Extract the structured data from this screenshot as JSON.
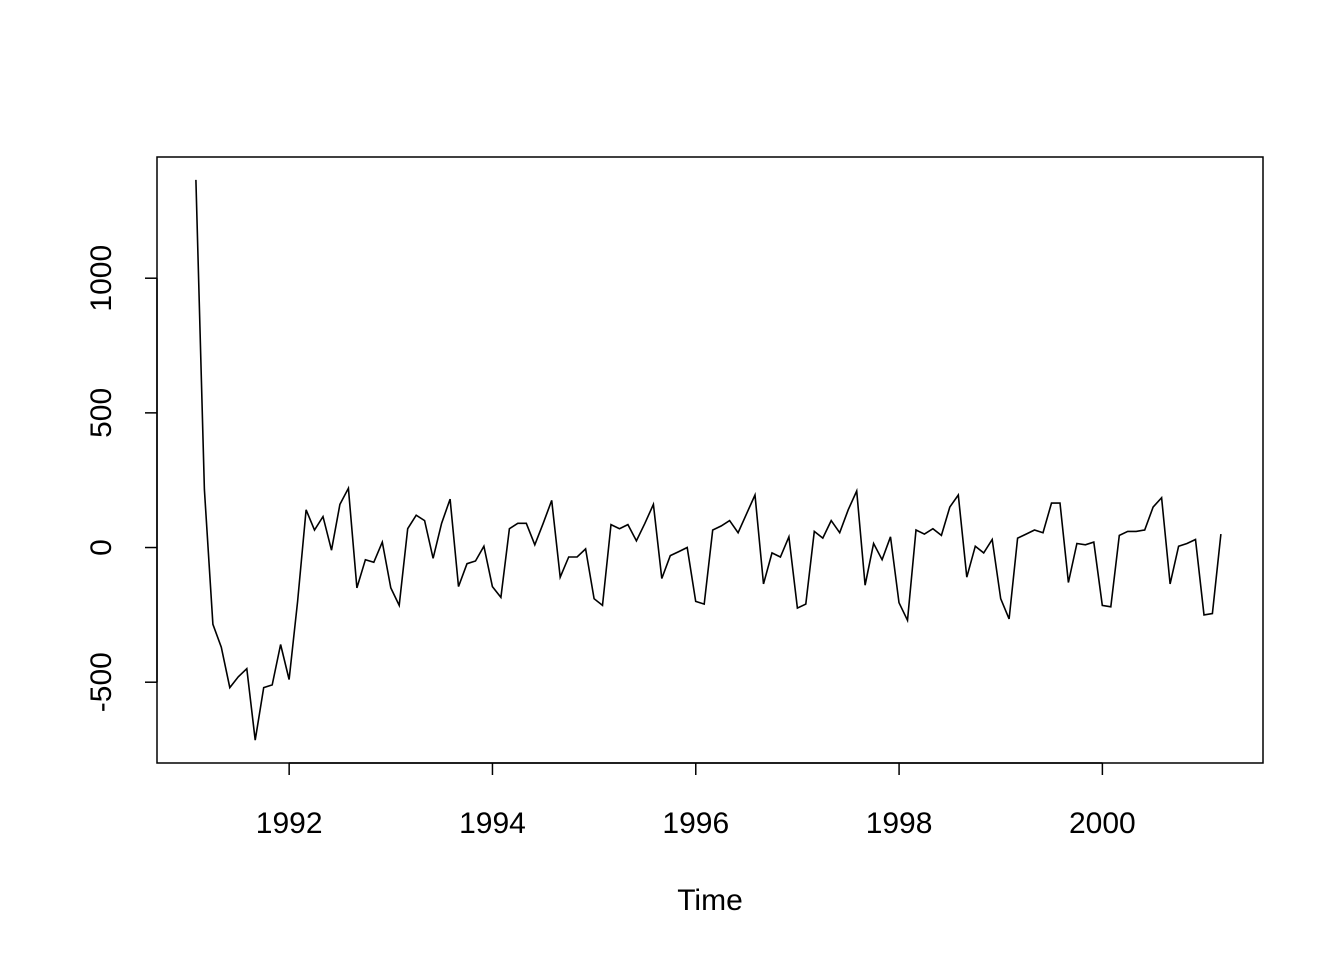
{
  "chart_data": {
    "type": "line",
    "title": "",
    "xlabel": "Time",
    "ylabel": "",
    "xlim": [
      1990.7,
      2001.58
    ],
    "ylim": [
      -800,
      1450
    ],
    "x_ticks": [
      1992,
      1994,
      1996,
      1998,
      2000
    ],
    "x_tick_labels": [
      "1992",
      "1994",
      "1996",
      "1998",
      "2000"
    ],
    "y_ticks": [
      -500,
      0,
      500,
      1000
    ],
    "y_tick_labels": [
      "-500",
      "0",
      "500",
      "1000"
    ],
    "grid": false,
    "legend": "none",
    "line_color": "#000000",
    "series": [
      {
        "x_start": 1991.083,
        "x_step": 0.08333,
        "values": [
          1365,
          215,
          -285,
          -370,
          -520,
          -480,
          -450,
          -715,
          -520,
          -510,
          -360,
          -490,
          -200,
          140,
          65,
          115,
          -10,
          160,
          220,
          -150,
          -45,
          -55,
          20,
          -150,
          -215,
          70,
          120,
          100,
          -40,
          90,
          180,
          -145,
          -60,
          -50,
          5,
          -145,
          -185,
          70,
          90,
          90,
          10,
          90,
          175,
          -110,
          -35,
          -35,
          -5,
          -190,
          -215,
          85,
          70,
          85,
          25,
          90,
          160,
          -115,
          -30,
          -15,
          0,
          -200,
          -210,
          65,
          80,
          100,
          55,
          125,
          195,
          -135,
          -20,
          -35,
          40,
          -225,
          -210,
          60,
          35,
          100,
          55,
          140,
          210,
          -140,
          15,
          -45,
          40,
          -205,
          -270,
          65,
          50,
          70,
          45,
          150,
          195,
          -110,
          5,
          -20,
          30,
          -190,
          -265,
          35,
          50,
          65,
          55,
          165,
          165,
          -130,
          15,
          10,
          20,
          -215,
          -220,
          45,
          60,
          60,
          65,
          150,
          185,
          -135,
          5,
          15,
          30,
          -250,
          -245,
          50
        ]
      }
    ]
  }
}
